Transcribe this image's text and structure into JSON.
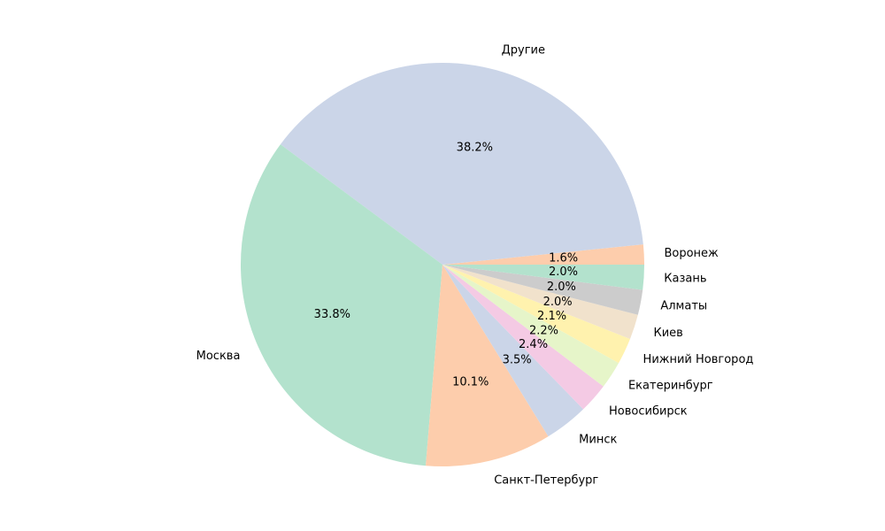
{
  "chart_data": {
    "type": "pie",
    "title": "",
    "start_angle_deg": 0,
    "direction": "counterclockwise",
    "slices": [
      {
        "label": "Воронеж",
        "value": 1.6,
        "pct_label": "1.6%",
        "color": "#fdcdac"
      },
      {
        "label": "Другие",
        "value": 38.2,
        "pct_label": "38.2%",
        "color": "#cbd5e8"
      },
      {
        "label": "Москва",
        "value": 33.8,
        "pct_label": "33.8%",
        "color": "#b3e2cd"
      },
      {
        "label": "Санкт-Петербург",
        "value": 10.1,
        "pct_label": "10.1%",
        "color": "#fdcdac"
      },
      {
        "label": "Минск",
        "value": 3.5,
        "pct_label": "3.5%",
        "color": "#cbd5e8"
      },
      {
        "label": "Новосибирск",
        "value": 2.4,
        "pct_label": "2.4%",
        "color": "#f4cae4"
      },
      {
        "label": "Екатеринбург",
        "value": 2.2,
        "pct_label": "2.2%",
        "color": "#e6f5c9"
      },
      {
        "label": "Нижний Новгород",
        "value": 2.1,
        "pct_label": "2.1%",
        "color": "#fff2ae"
      },
      {
        "label": "Киев",
        "value": 2.0,
        "pct_label": "2.0%",
        "color": "#f1e2cc"
      },
      {
        "label": "Алматы",
        "value": 2.0,
        "pct_label": "2.0%",
        "color": "#cccccc"
      },
      {
        "label": "Казань",
        "value": 2.0,
        "pct_label": "2.0%",
        "color": "#b3e2cd"
      }
    ]
  }
}
